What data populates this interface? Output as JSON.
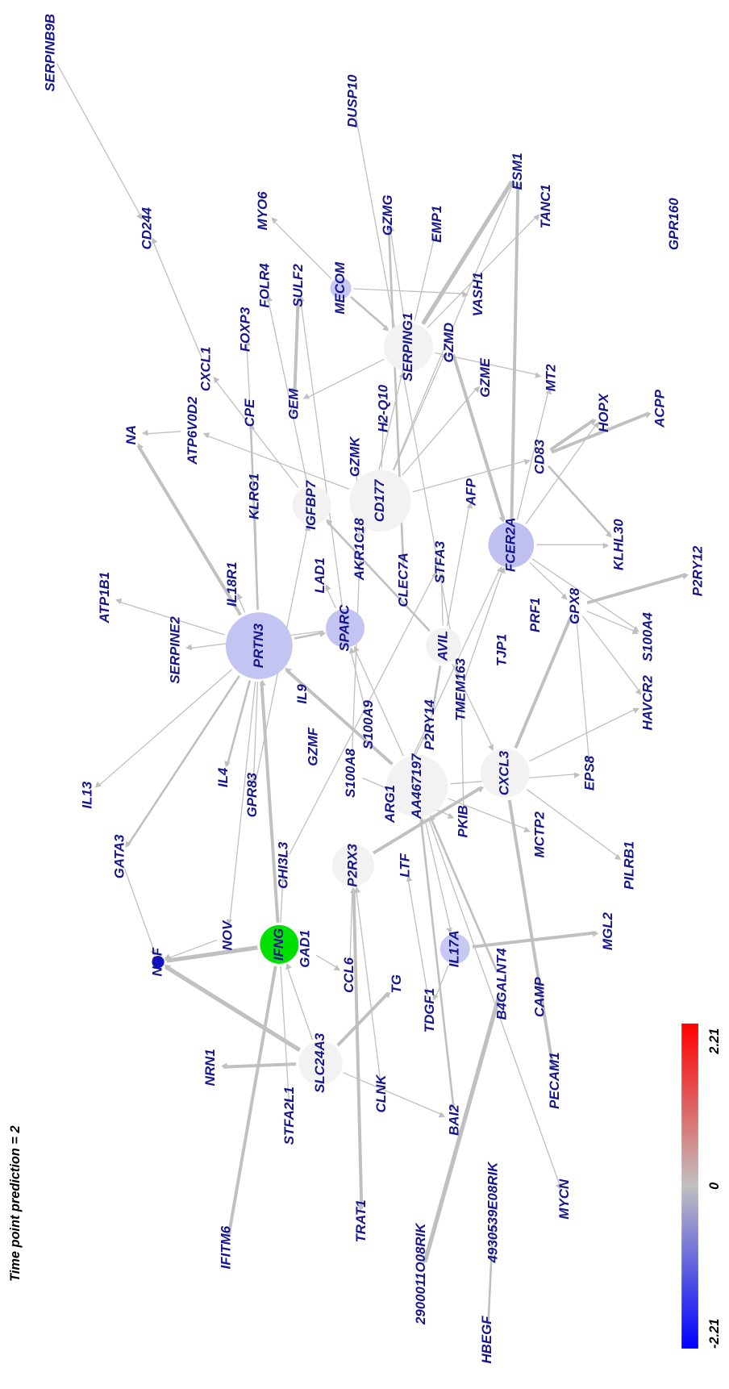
{
  "title": "Time point prediction = 2",
  "nodes": [
    {
      "label": "SERPINB9B"
    },
    {
      "label": "DUSP10"
    },
    {
      "label": "CD244"
    },
    {
      "label": "GPR160"
    },
    {
      "label": "MYO6"
    },
    {
      "label": "GZMG"
    },
    {
      "label": "EMP1"
    },
    {
      "label": "ESM1"
    },
    {
      "label": "TANC1"
    },
    {
      "label": "FOLR4"
    },
    {
      "label": "SULF2"
    },
    {
      "label": "MECOM"
    },
    {
      "label": "VASH1"
    },
    {
      "label": "FOXP3"
    },
    {
      "label": "SERPING1"
    },
    {
      "label": "GZMD"
    },
    {
      "label": "CXCL1"
    },
    {
      "label": "GEM"
    },
    {
      "label": "GZME"
    },
    {
      "label": "MT2"
    },
    {
      "label": "NA"
    },
    {
      "label": "ATP6V0D2"
    },
    {
      "label": "CPE"
    },
    {
      "label": "H2-Q10"
    },
    {
      "label": "HOPX"
    },
    {
      "label": "ACPP"
    },
    {
      "label": "CD83"
    },
    {
      "label": "GZMK"
    },
    {
      "label": "CD177"
    },
    {
      "label": "IGFBP7"
    },
    {
      "label": "KLRG1"
    },
    {
      "label": "AFP"
    },
    {
      "label": "FCER2A"
    },
    {
      "label": "KLHL30"
    },
    {
      "label": "AKR1C18"
    },
    {
      "label": "STFA3"
    },
    {
      "label": "P2RY12"
    },
    {
      "label": "LAD1"
    },
    {
      "label": "CLEC7A"
    },
    {
      "label": "IL18R1"
    },
    {
      "label": "ATP1B1"
    },
    {
      "label": "GPX8"
    },
    {
      "label": "PRF1"
    },
    {
      "label": "SPARC"
    },
    {
      "label": "PRTN3"
    },
    {
      "label": "AVIL"
    },
    {
      "label": "TJP1"
    },
    {
      "label": "S100A4"
    },
    {
      "label": "SERPINE2"
    },
    {
      "label": "IL9"
    },
    {
      "label": "TMEM163"
    },
    {
      "label": "HAVCR2"
    },
    {
      "label": "P2RY14"
    },
    {
      "label": "S100A9"
    },
    {
      "label": "GZMF"
    },
    {
      "label": "CXCL3"
    },
    {
      "label": "AA467197"
    },
    {
      "label": "S100A8"
    },
    {
      "label": "IL13"
    },
    {
      "label": "IL4"
    },
    {
      "label": "EPS8"
    },
    {
      "label": "ARG1"
    },
    {
      "label": "GPR83"
    },
    {
      "label": "PKIB"
    },
    {
      "label": "MCTP2"
    },
    {
      "label": "GATA3"
    },
    {
      "label": "CHI3L3"
    },
    {
      "label": "P2RX3"
    },
    {
      "label": "LTF"
    },
    {
      "label": "PILRB1"
    },
    {
      "label": "NOV"
    },
    {
      "label": "IFNG"
    },
    {
      "label": "GAD1"
    },
    {
      "label": "NGF"
    },
    {
      "label": "MGL2"
    },
    {
      "label": "IL17A"
    },
    {
      "label": "CCL6"
    },
    {
      "label": "TG"
    },
    {
      "label": "B4GALNT4"
    },
    {
      "label": "CAMP"
    },
    {
      "label": "TDGF1"
    },
    {
      "label": "SLC24A3"
    },
    {
      "label": "NRN1"
    },
    {
      "label": "CLNK"
    },
    {
      "label": "PECAM1"
    },
    {
      "label": "STFA2L1"
    },
    {
      "label": "BAI2"
    },
    {
      "label": "4930539E08RIK"
    },
    {
      "label": "MYCN"
    },
    {
      "label": "TRAT1"
    },
    {
      "label": "IFITM6"
    },
    {
      "label": "2900011O08RIK"
    },
    {
      "label": "HBEGF"
    }
  ],
  "colorbar": {
    "min": -2.21,
    "mid": 0,
    "max": 2.21
  }
}
